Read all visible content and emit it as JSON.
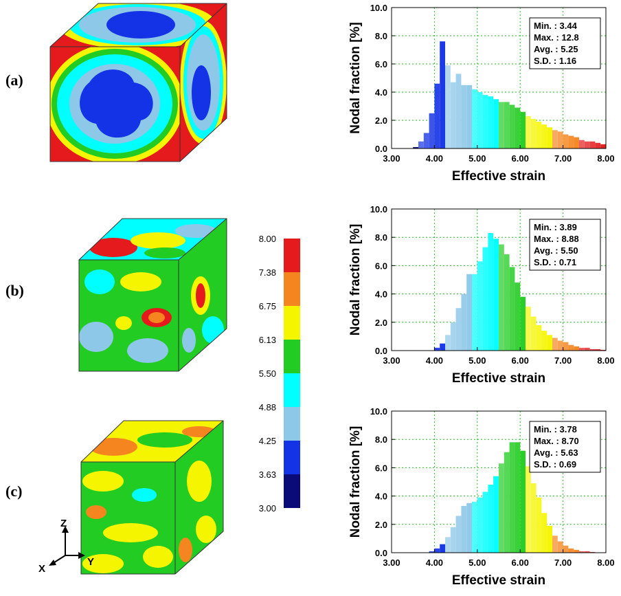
{
  "panels": [
    {
      "label": "(a)"
    },
    {
      "label": "(b)"
    },
    {
      "label": "(c)"
    }
  ],
  "colorbar": {
    "ticks": [
      "8.00",
      "7.38",
      "6.75",
      "6.13",
      "5.50",
      "4.88",
      "4.25",
      "3.63",
      "3.00"
    ],
    "colors": [
      "#e41a1c",
      "#f5861f",
      "#f5f500",
      "#22cc22",
      "#00ffff",
      "#8ec8e8",
      "#1432e6",
      "#0a0a78"
    ]
  },
  "axes_triad": {
    "z": "Z",
    "y": "Y",
    "x": "X"
  },
  "chart_data": [
    {
      "type": "bar",
      "xlabel": "Effective strain",
      "ylabel": "Nodal fraction [%]",
      "xlim": [
        3.0,
        8.0
      ],
      "ylim": [
        0.0,
        10.0
      ],
      "xticks": [
        "3.00",
        "4.00",
        "5.00",
        "6.00",
        "7.00",
        "8.00"
      ],
      "yticks": [
        "0.0",
        "2.0",
        "4.0",
        "6.0",
        "8.0",
        "10.0"
      ],
      "grid": true,
      "bin_width": 0.125,
      "x": [
        3.5625,
        3.6875,
        3.8125,
        3.9375,
        4.0625,
        4.1875,
        4.3125,
        4.4375,
        4.5625,
        4.6875,
        4.8125,
        4.9375,
        5.0625,
        5.1875,
        5.3125,
        5.4375,
        5.5625,
        5.6875,
        5.8125,
        5.9375,
        6.0625,
        6.1875,
        6.3125,
        6.4375,
        6.5625,
        6.6875,
        6.8125,
        6.9375,
        7.0625,
        7.1875,
        7.3125,
        7.4375,
        7.5625,
        7.6875,
        7.8125,
        7.9375
      ],
      "values": [
        0.1,
        0.5,
        1.1,
        2.5,
        4.6,
        7.6,
        5.9,
        4.7,
        5.3,
        4.5,
        4.5,
        4.2,
        4.0,
        3.8,
        3.7,
        3.5,
        3.3,
        3.3,
        3.1,
        2.9,
        2.6,
        2.3,
        2.1,
        1.9,
        1.7,
        1.5,
        1.3,
        1.2,
        1.0,
        0.9,
        0.8,
        0.6,
        0.5,
        0.5,
        0.4,
        0.3
      ],
      "stats": {
        "min": "Min. : 3.44",
        "max": "Max. : 12.8",
        "avg": "Avg. : 5.25",
        "sd": "S.D. : 1.16"
      }
    },
    {
      "type": "bar",
      "xlabel": "Effective strain",
      "ylabel": "Nodal fraction [%]",
      "xlim": [
        3.0,
        8.0
      ],
      "ylim": [
        0.0,
        10.0
      ],
      "xticks": [
        "3.00",
        "4.00",
        "5.00",
        "6.00",
        "7.00",
        "8.00"
      ],
      "yticks": [
        "0.0",
        "2.0",
        "4.0",
        "6.0",
        "8.0",
        "10.0"
      ],
      "grid": true,
      "bin_width": 0.125,
      "x": [
        4.0625,
        4.1875,
        4.3125,
        4.4375,
        4.5625,
        4.6875,
        4.8125,
        4.9375,
        5.0625,
        5.1875,
        5.3125,
        5.4375,
        5.5625,
        5.6875,
        5.8125,
        5.9375,
        6.0625,
        6.1875,
        6.3125,
        6.4375,
        6.5625,
        6.6875,
        6.8125,
        6.9375,
        7.0625,
        7.1875,
        7.3125,
        7.4375,
        7.5625,
        7.6875,
        7.8125,
        7.9375
      ],
      "values": [
        0.2,
        0.5,
        1.1,
        2.0,
        3.0,
        4.0,
        5.4,
        5.4,
        6.3,
        7.3,
        8.3,
        7.9,
        7.5,
        6.8,
        5.9,
        4.8,
        3.8,
        3.1,
        2.4,
        1.8,
        1.4,
        1.1,
        0.9,
        0.7,
        0.6,
        0.4,
        0.3,
        0.2,
        0.2,
        0.1,
        0.1,
        0.05
      ],
      "stats": {
        "min": "Min. : 3.89",
        "max": "Max. : 8.88",
        "avg": "Avg. : 5.50",
        "sd": "S.D. : 0.71"
      }
    },
    {
      "type": "bar",
      "xlabel": "Effective strain",
      "ylabel": "Nodal fraction [%]",
      "xlim": [
        3.0,
        8.0
      ],
      "ylim": [
        0.0,
        10.0
      ],
      "xticks": [
        "3.00",
        "4.00",
        "5.00",
        "6.00",
        "7.00",
        "8.00"
      ],
      "yticks": [
        "0.0",
        "2.0",
        "4.0",
        "6.0",
        "8.0",
        "10.0"
      ],
      "grid": true,
      "bin_width": 0.125,
      "x": [
        3.9375,
        4.0625,
        4.1875,
        4.3125,
        4.4375,
        4.5625,
        4.6875,
        4.8125,
        4.9375,
        5.0625,
        5.1875,
        5.3125,
        5.4375,
        5.5625,
        5.6875,
        5.8125,
        5.9375,
        6.0625,
        6.1875,
        6.3125,
        6.4375,
        6.5625,
        6.6875,
        6.8125,
        6.9375,
        7.0625,
        7.1875,
        7.3125,
        7.4375,
        7.5625,
        7.6875
      ],
      "values": [
        0.1,
        0.3,
        0.6,
        1.1,
        1.8,
        2.6,
        3.3,
        3.5,
        3.6,
        3.9,
        4.3,
        4.8,
        5.4,
        6.3,
        7.1,
        7.8,
        7.8,
        7.2,
        6.1,
        4.9,
        3.9,
        2.8,
        1.9,
        1.2,
        0.8,
        0.5,
        0.3,
        0.2,
        0.1,
        0.1,
        0.05
      ],
      "stats": {
        "min": "Min. : 3.78",
        "max": "Max. : 8.70",
        "avg": "Avg. : 5.63",
        "sd": "S.D. : 0.69"
      }
    }
  ]
}
